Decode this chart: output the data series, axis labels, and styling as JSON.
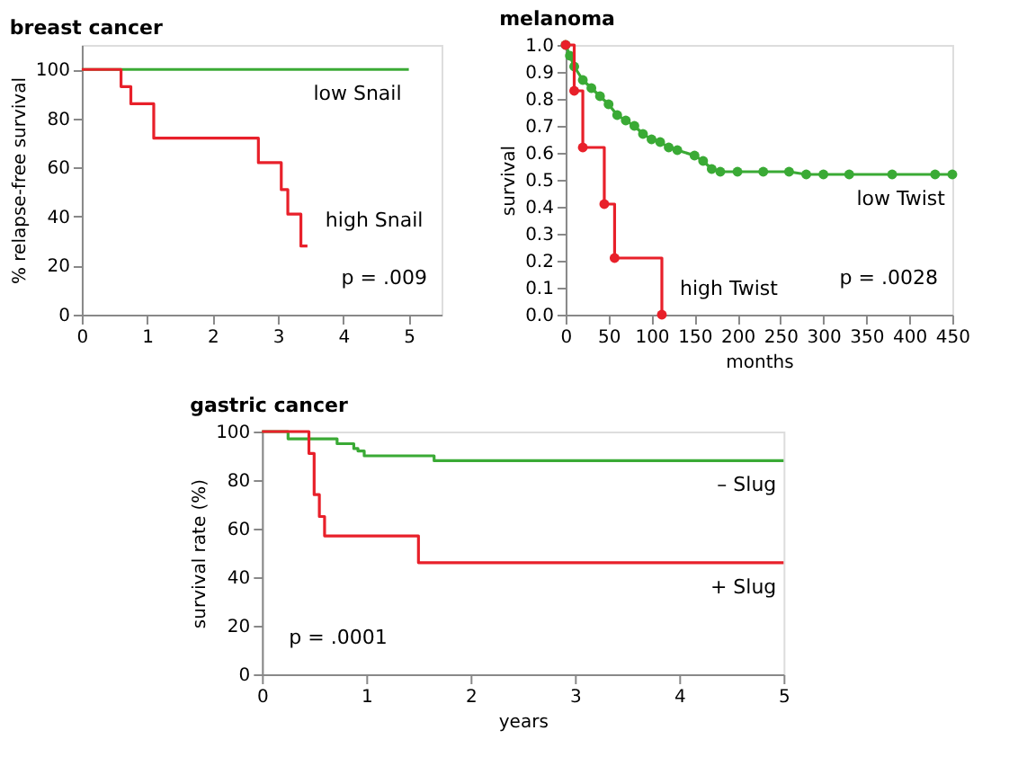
{
  "chart_data": [
    {
      "type": "step",
      "title": "breast cancer",
      "ylabel": "% relapse-free survival",
      "xlim": [
        0,
        5.5
      ],
      "xticks": [
        0,
        1,
        2,
        3,
        4,
        5
      ],
      "ylim": [
        0,
        110
      ],
      "yticks": [
        0,
        20,
        40,
        60,
        80,
        100
      ],
      "grid": false,
      "legend": false,
      "annotations": [
        "p = .009"
      ],
      "series": [
        {
          "name": "low Snail",
          "color": "#3aaa35",
          "x": [
            0,
            5
          ],
          "values": [
            100,
            100
          ]
        },
        {
          "name": "high Snail",
          "color": "#e8202a",
          "x": [
            0,
            0.6,
            0.75,
            1.1,
            2.7,
            3.05,
            3.15,
            3.35,
            3.45
          ],
          "values": [
            100,
            93,
            86,
            72,
            62,
            51,
            41,
            28,
            28
          ]
        }
      ]
    },
    {
      "type": "step",
      "title": "melanoma",
      "xlabel": "months",
      "ylabel": "survival",
      "xlim": [
        0,
        450
      ],
      "xticks": [
        0,
        50,
        100,
        150,
        200,
        250,
        300,
        350,
        400,
        450
      ],
      "ylim": [
        0,
        1
      ],
      "yticks": [
        {
          "value": 0,
          "label": "0.0"
        },
        0.1,
        0.2,
        0.3,
        0.4,
        0.5,
        0.6,
        0.7,
        0.8,
        0.9,
        {
          "value": 1,
          "label": "1.0"
        }
      ],
      "grid": false,
      "legend": false,
      "marker": "circle",
      "annotations": [
        "p = .0028"
      ],
      "series": [
        {
          "name": "low Twist",
          "type": "line",
          "color": "#3aaa35",
          "x": [
            0,
            5,
            10,
            20,
            30,
            40,
            50,
            60,
            70,
            80,
            90,
            100,
            110,
            120,
            130,
            150,
            160,
            170,
            180,
            200,
            230,
            260,
            280,
            300,
            330,
            380,
            430,
            450
          ],
          "values": [
            1,
            0.96,
            0.92,
            0.87,
            0.84,
            0.81,
            0.78,
            0.74,
            0.72,
            0.7,
            0.67,
            0.65,
            0.64,
            0.62,
            0.61,
            0.59,
            0.57,
            0.54,
            0.53,
            0.53,
            0.53,
            0.53,
            0.52,
            0.52,
            0.52,
            0.52,
            0.52,
            0.52
          ]
        },
        {
          "name": "high Twist",
          "color": "#e8202a",
          "x": [
            0,
            10,
            20,
            45,
            57,
            112
          ],
          "values": [
            1,
            0.83,
            0.62,
            0.41,
            0.21,
            0.0
          ]
        }
      ]
    },
    {
      "type": "step",
      "title": "gastric cancer",
      "xlabel": "years",
      "ylabel": "survival rate (%)",
      "xlim": [
        0,
        5
      ],
      "xticks": [
        0,
        1,
        2,
        3,
        4,
        5
      ],
      "ylim": [
        0,
        100
      ],
      "yticks": [
        0,
        20,
        40,
        60,
        80,
        100
      ],
      "grid": false,
      "legend": false,
      "annotations": [
        "p = .0001"
      ],
      "series": [
        {
          "name": "– Slug",
          "color": "#3aaa35",
          "x": [
            0,
            0.25,
            0.72,
            0.88,
            0.92,
            0.98,
            1.65,
            5
          ],
          "values": [
            100,
            97,
            95,
            93,
            92,
            90,
            88,
            88
          ]
        },
        {
          "name": "+ Slug",
          "color": "#e8202a",
          "x": [
            0,
            0.45,
            0.5,
            0.55,
            0.6,
            1.5,
            5
          ],
          "values": [
            100,
            91,
            74,
            65,
            57,
            46,
            46
          ]
        }
      ]
    }
  ]
}
